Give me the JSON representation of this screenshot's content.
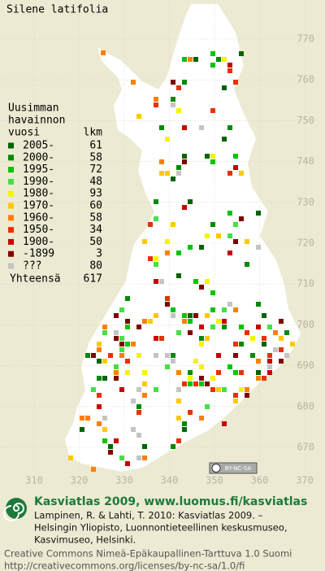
{
  "title": "Silene latifolia",
  "legend": {
    "heading": [
      "Uusimman",
      "havainnon",
      "vuosi"
    ],
    "count_heading": "lkm",
    "rows": [
      {
        "label": "2005-",
        "count": 61,
        "color": "#006400"
      },
      {
        "label": "2000-",
        "count": 58,
        "color": "#008a00"
      },
      {
        "label": "1995-",
        "count": 72,
        "color": "#00c400"
      },
      {
        "label": "1990-",
        "count": 48,
        "color": "#44e044"
      },
      {
        "label": "1980-",
        "count": 93,
        "color": "#f4f400"
      },
      {
        "label": "1970-",
        "count": 60,
        "color": "#ffc800"
      },
      {
        "label": "1960-",
        "count": 58,
        "color": "#ff8000"
      },
      {
        "label": "1950-",
        "count": 34,
        "color": "#e83000"
      },
      {
        "label": "1900-",
        "count": 50,
        "color": "#c80000"
      },
      {
        "label": "-1899",
        "count": 3,
        "color": "#800000"
      },
      {
        "label": "???",
        "count": 80,
        "color": "#c4c4c4"
      }
    ],
    "total_label": "Yhteensä",
    "total": 617
  },
  "grid": {
    "x_labels": [
      310,
      320,
      330,
      340,
      350,
      360,
      370
    ],
    "y_labels": [
      670,
      680,
      690,
      700,
      710,
      720,
      730,
      740,
      750,
      760,
      770
    ]
  },
  "badge": "BY-NC-SA",
  "footer": {
    "title": "Kasviatlas 2009, www.luomus.fi/kasviatlas",
    "citation": [
      "Lampinen, R. & Lahti, T. 2010: Kasviatlas 2009. –",
      "Helsingin Yliopisto, Luonnontieteellinen keskusmuseo,",
      "Kasvimuseo, Helsinki."
    ],
    "license": "Creative Commons Nimeä-Epäkaupallinen-Tarttuva 1.0 Suomi",
    "url": "http://creativecommons.org/licenses/by-nc-sa/1.0/fi"
  }
}
